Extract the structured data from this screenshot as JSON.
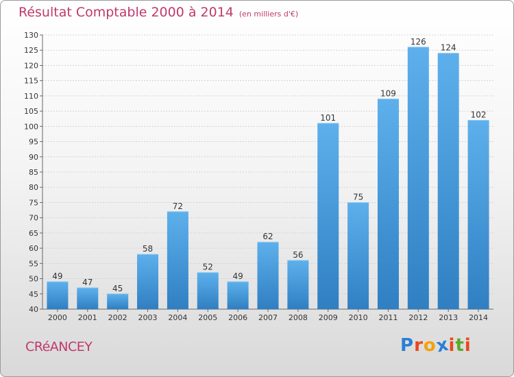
{
  "chart_data": {
    "type": "bar",
    "title": "Résultat Comptable 2000 à 2014",
    "subtitle": "(en milliers d'€)",
    "categories": [
      "2000",
      "2001",
      "2002",
      "2003",
      "2004",
      "2005",
      "2006",
      "2007",
      "2008",
      "2009",
      "2010",
      "2011",
      "2012",
      "2013",
      "2014"
    ],
    "values": [
      49,
      47,
      45,
      58,
      72,
      52,
      49,
      62,
      56,
      101,
      75,
      109,
      126,
      124,
      102
    ],
    "ylim": [
      40,
      130
    ],
    "yticks": [
      40,
      45,
      50,
      55,
      60,
      65,
      70,
      75,
      80,
      85,
      90,
      95,
      100,
      105,
      110,
      115,
      120,
      125,
      130
    ],
    "grid": true,
    "bar_color": "#3a8fd6"
  },
  "footer": {
    "commune": "CRéANCEY",
    "logo_letters": [
      "P",
      "r",
      "o",
      "x",
      "i",
      "t",
      "i"
    ],
    "logo_colors": [
      "#2a7fd4",
      "#e8481c",
      "#f2a20c",
      "#2a7fd4",
      "#e8481c",
      "#5aaa2a",
      "#e8481c"
    ]
  }
}
